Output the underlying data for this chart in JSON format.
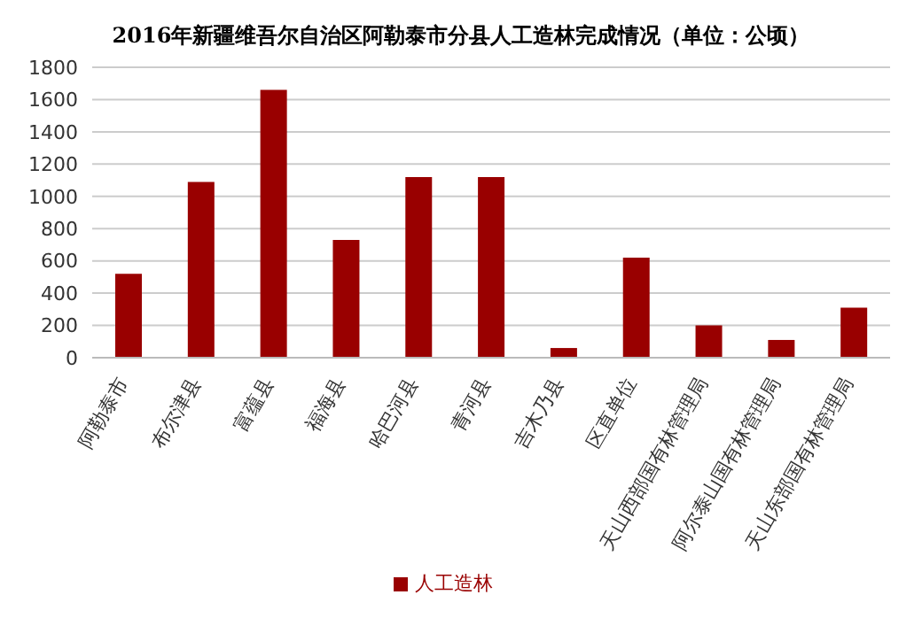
{
  "chart_data": {
    "type": "bar",
    "title": "2016年新疆维吾尔自治区阿勒泰市分县人工造林完成情况（单位：公顷）",
    "categories": [
      "阿勒泰市",
      "布尔津县",
      "富蕴县",
      "福海县",
      "哈巴河县",
      "青河县",
      "吉木乃县",
      "区直单位",
      "天山西部国有林管理局",
      "阿尔泰山国有林管理局",
      "天山东部国有林管理局"
    ],
    "series": [
      {
        "name": "人工造林",
        "color": "#990000",
        "values": [
          520,
          1090,
          1660,
          730,
          1120,
          1120,
          60,
          620,
          200,
          110,
          310
        ]
      }
    ],
    "ylim": [
      0,
      1800
    ],
    "yticks": [
      0,
      200,
      400,
      600,
      800,
      1000,
      1200,
      1400,
      1600,
      1800
    ],
    "grid": "y",
    "legend": "bottom"
  }
}
